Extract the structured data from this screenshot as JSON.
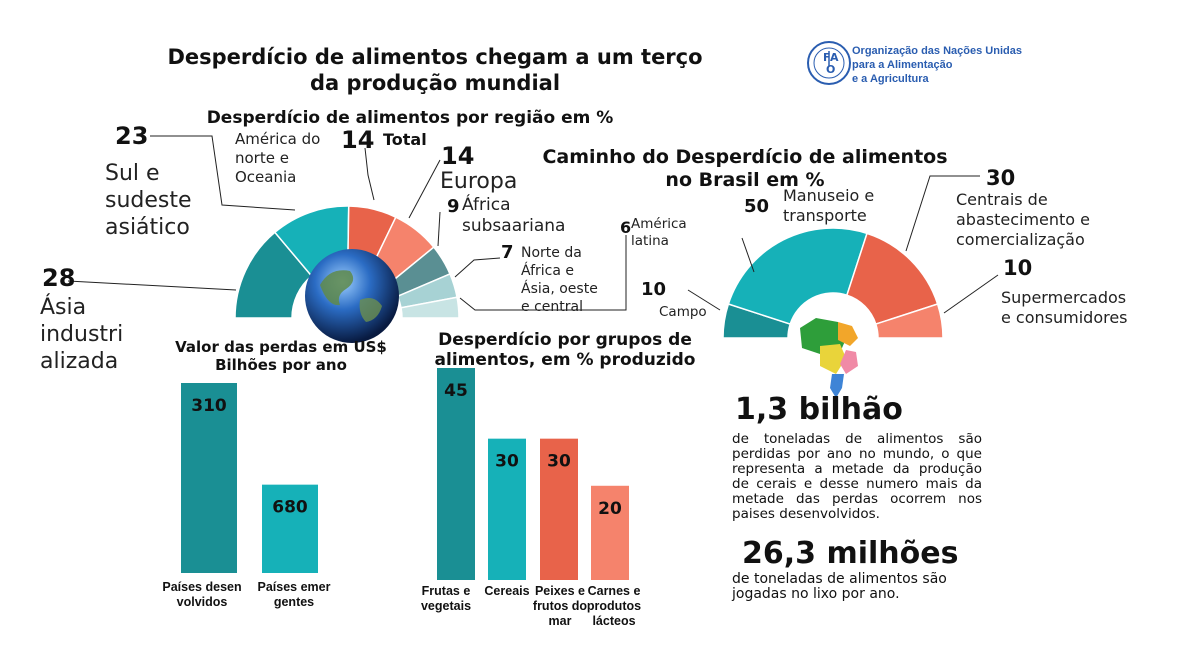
{
  "main_title": "Desperdício de alimentos chegam a um terço da produção mundial",
  "fao": {
    "name_lines": [
      "Organização das Nações Unidas",
      "para a Alimentação",
      "e a Agricultura"
    ]
  },
  "colors": {
    "teal_dark": "#1a8f94",
    "teal": "#16b1b8",
    "orange": "#e8634a",
    "salmon": "#f5836c",
    "grey_teal": "#5a8f93",
    "light_teal": "#a7d2d4",
    "pale_teal": "#c8e4e4"
  },
  "chart_data": [
    {
      "type": "pie",
      "title": "Desperdício de alimentos por região em %",
      "total_label": "Total",
      "slices": [
        {
          "name_lines": [
            "Ásia",
            "industri",
            "alizada"
          ],
          "value": 28
        },
        {
          "name_lines": [
            "Sul e",
            "sudeste",
            "asiático"
          ],
          "value": 23
        },
        {
          "name_lines": [
            "América do",
            "norte e",
            "Oceania"
          ],
          "value": 14
        },
        {
          "name_lines": [
            "Europa"
          ],
          "value": 14
        },
        {
          "name_lines": [
            "África",
            "subsaariana"
          ],
          "value": 9
        },
        {
          "name_lines": [
            "Norte da",
            "África e",
            "Ásia, oeste",
            "e central"
          ],
          "value": 7
        },
        {
          "name_lines": [
            "América",
            "latina"
          ],
          "value": 6
        }
      ]
    },
    {
      "type": "pie",
      "title_lines": [
        "Caminho do Desperdício de alimentos",
        "no Brasil em %"
      ],
      "slices": [
        {
          "name_lines": [
            "Campo"
          ],
          "value": 10
        },
        {
          "name_lines": [
            "Manuseio e",
            "transporte"
          ],
          "value": 50
        },
        {
          "name_lines": [
            "Centrais de",
            "abastecimento e",
            "comercialização"
          ],
          "value": 30
        },
        {
          "name_lines": [
            "Supermercados",
            "e consumidores"
          ],
          "value": 10
        }
      ]
    },
    {
      "type": "bar",
      "title_lines": [
        "Valor das perdas em US$",
        "Bilhões por ano"
      ],
      "categories": [
        [
          "Países desen",
          "volvidos"
        ],
        [
          "Países emer",
          "gentes"
        ]
      ],
      "values": [
        310,
        680
      ]
    },
    {
      "type": "bar",
      "title_lines": [
        "Desperdício por grupos de",
        "alimentos, em % produzido"
      ],
      "categories": [
        [
          "Frutas e",
          "vegetais"
        ],
        [
          "Cereais"
        ],
        [
          "Peixes e",
          "frutos do",
          "mar"
        ],
        [
          "Carnes e",
          "produtos",
          "lácteos"
        ]
      ],
      "values": [
        45,
        30,
        30,
        20
      ]
    }
  ],
  "stats": [
    {
      "value": "1,3 bilhão",
      "text": "de toneladas de alimentos são perdidas por ano no mundo, o que representa a metade da produção de cerais e desse numero mais da metade das perdas ocorrem nos paises desenvolvidos."
    },
    {
      "value": "26,3 milhões",
      "text": "de toneladas de alimentos são jogadas no lixo por ano."
    }
  ]
}
